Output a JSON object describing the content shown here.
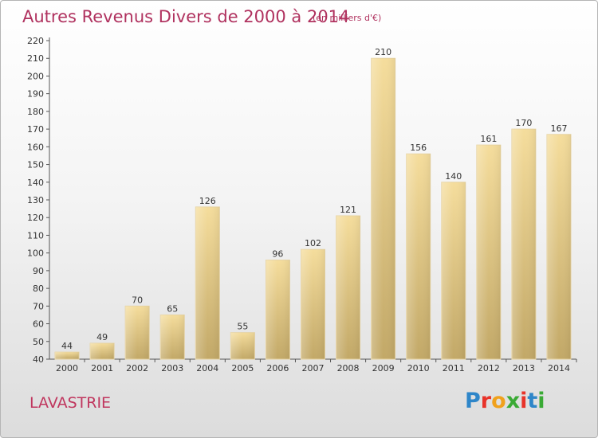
{
  "title": "Autres Revenus Divers de 2000 à 2014",
  "subtitle": "(en milliers d'€)",
  "place": "LAVASTRIE",
  "brand": "Proxiti",
  "brand_colors": [
    "#2e86c9",
    "#e8332a",
    "#f0a11c",
    "#3aaa35",
    "#e8332a",
    "#2e86c9",
    "#3aaa35"
  ],
  "colors": {
    "title": "#b0325f",
    "bar_light": "#f5dd9c",
    "bar_dark": "#c2a867"
  },
  "chart_data": {
    "type": "bar",
    "title": "Autres Revenus Divers de 2000 à 2014",
    "subtitle": "(en milliers d'€)",
    "categories": [
      "2000",
      "2001",
      "2002",
      "2003",
      "2004",
      "2005",
      "2006",
      "2007",
      "2008",
      "2009",
      "2010",
      "2011",
      "2012",
      "2013",
      "2014"
    ],
    "values": [
      44,
      49,
      70,
      65,
      126,
      55,
      96,
      102,
      121,
      210,
      156,
      140,
      161,
      170,
      167
    ],
    "ylim": [
      40,
      220
    ],
    "yticks": [
      40,
      50,
      60,
      70,
      80,
      90,
      100,
      110,
      120,
      130,
      140,
      150,
      160,
      170,
      180,
      190,
      200,
      210,
      220
    ],
    "grid": false,
    "legend": "none"
  }
}
